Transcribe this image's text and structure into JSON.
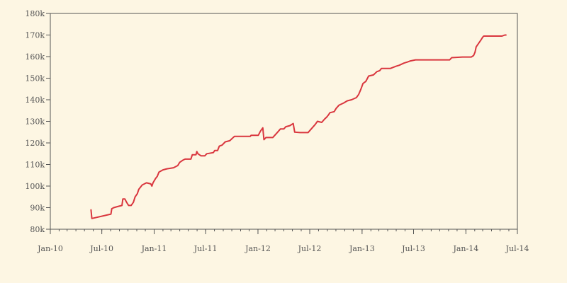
{
  "chart_data": {
    "type": "line",
    "title": "",
    "xlabel": "",
    "ylabel": "",
    "grid": false,
    "colors": {
      "background": "#fdf6e3",
      "plot_background": "#fdf6e3",
      "axis": "#555555",
      "line": "#d9363e"
    },
    "xlim": [
      "2010-01-01",
      "2014-07-01"
    ],
    "ylim": [
      80000,
      180000
    ],
    "x_ticks": [
      {
        "date": "2010-01-01",
        "label": "Jan-10"
      },
      {
        "date": "2010-07-01",
        "label": "Jul-10"
      },
      {
        "date": "2011-01-01",
        "label": "Jan-11"
      },
      {
        "date": "2011-07-01",
        "label": "Jul-11"
      },
      {
        "date": "2012-01-01",
        "label": "Jan-12"
      },
      {
        "date": "2012-07-01",
        "label": "Jul-12"
      },
      {
        "date": "2013-01-01",
        "label": "Jan-13"
      },
      {
        "date": "2013-07-01",
        "label": "Jul-13"
      },
      {
        "date": "2014-01-01",
        "label": "Jan-14"
      },
      {
        "date": "2014-07-01",
        "label": "Jul-14"
      }
    ],
    "y_ticks": [
      {
        "value": 80000,
        "label": "80k"
      },
      {
        "value": 90000,
        "label": "90k"
      },
      {
        "value": 100000,
        "label": "100k"
      },
      {
        "value": 110000,
        "label": "110k"
      },
      {
        "value": 120000,
        "label": "120k"
      },
      {
        "value": 130000,
        "label": "130k"
      },
      {
        "value": 140000,
        "label": "140k"
      },
      {
        "value": 150000,
        "label": "150k"
      },
      {
        "value": 160000,
        "label": "160k"
      },
      {
        "value": 170000,
        "label": "170k"
      },
      {
        "value": 180000,
        "label": "180k"
      }
    ],
    "series": [
      {
        "points": [
          [
            "2010-05-24",
            89000
          ],
          [
            "2010-05-27",
            85000
          ],
          [
            "2010-08-02",
            87000
          ],
          [
            "2010-08-05",
            89500
          ],
          [
            "2010-08-12",
            90000
          ],
          [
            "2010-08-25",
            90500
          ],
          [
            "2010-09-10",
            91000
          ],
          [
            "2010-09-13",
            94000
          ],
          [
            "2010-09-20",
            94000
          ],
          [
            "2010-09-26",
            92500
          ],
          [
            "2010-10-03",
            91000
          ],
          [
            "2010-10-12",
            91000
          ],
          [
            "2010-10-20",
            92500
          ],
          [
            "2010-10-26",
            95000
          ],
          [
            "2010-11-03",
            96500
          ],
          [
            "2010-11-08",
            98500
          ],
          [
            "2010-11-20",
            100500
          ],
          [
            "2010-12-05",
            101500
          ],
          [
            "2010-12-20",
            101000
          ],
          [
            "2010-12-24",
            100000
          ],
          [
            "2010-12-28",
            101500
          ],
          [
            "2011-01-06",
            103500
          ],
          [
            "2011-01-12",
            104500
          ],
          [
            "2011-01-18",
            106500
          ],
          [
            "2011-02-01",
            107500
          ],
          [
            "2011-02-15",
            108000
          ],
          [
            "2011-03-10",
            108500
          ],
          [
            "2011-03-25",
            109500
          ],
          [
            "2011-04-01",
            111000
          ],
          [
            "2011-04-12",
            112000
          ],
          [
            "2011-04-20",
            112500
          ],
          [
            "2011-05-10",
            112500
          ],
          [
            "2011-05-15",
            114500
          ],
          [
            "2011-05-28",
            114500
          ],
          [
            "2011-05-31",
            116000
          ],
          [
            "2011-06-04",
            115000
          ],
          [
            "2011-06-15",
            114000
          ],
          [
            "2011-06-28",
            114000
          ],
          [
            "2011-07-05",
            115000
          ],
          [
            "2011-07-28",
            115500
          ],
          [
            "2011-08-02",
            116500
          ],
          [
            "2011-08-12",
            116500
          ],
          [
            "2011-08-18",
            118500
          ],
          [
            "2011-08-28",
            119000
          ],
          [
            "2011-09-08",
            120500
          ],
          [
            "2011-09-24",
            121000
          ],
          [
            "2011-10-10",
            123000
          ],
          [
            "2011-12-05",
            123000
          ],
          [
            "2011-12-08",
            123500
          ],
          [
            "2012-01-02",
            123500
          ],
          [
            "2012-01-10",
            125500
          ],
          [
            "2012-01-18",
            127000
          ],
          [
            "2012-01-22",
            121500
          ],
          [
            "2012-01-29",
            122500
          ],
          [
            "2012-02-22",
            122500
          ],
          [
            "2012-03-10",
            125000
          ],
          [
            "2012-03-20",
            126500
          ],
          [
            "2012-04-01",
            126500
          ],
          [
            "2012-04-08",
            127500
          ],
          [
            "2012-04-22",
            128000
          ],
          [
            "2012-05-04",
            129000
          ],
          [
            "2012-05-09",
            125000
          ],
          [
            "2012-05-28",
            124800
          ],
          [
            "2012-06-25",
            124800
          ],
          [
            "2012-07-20",
            128500
          ],
          [
            "2012-07-28",
            130000
          ],
          [
            "2012-08-12",
            129500
          ],
          [
            "2012-08-22",
            131000
          ],
          [
            "2012-08-30",
            132000
          ],
          [
            "2012-09-05",
            133000
          ],
          [
            "2012-09-10",
            134000
          ],
          [
            "2012-09-25",
            134500
          ],
          [
            "2012-10-02",
            136000
          ],
          [
            "2012-10-12",
            137500
          ],
          [
            "2012-10-28",
            138500
          ],
          [
            "2012-11-10",
            139500
          ],
          [
            "2012-11-25",
            140000
          ],
          [
            "2012-12-12",
            141000
          ],
          [
            "2012-12-20",
            142500
          ],
          [
            "2012-12-28",
            145000
          ],
          [
            "2013-01-04",
            147500
          ],
          [
            "2013-01-14",
            148500
          ],
          [
            "2013-01-24",
            151000
          ],
          [
            "2013-02-10",
            151500
          ],
          [
            "2013-02-22",
            153000
          ],
          [
            "2013-03-04",
            153500
          ],
          [
            "2013-03-10",
            154500
          ],
          [
            "2013-04-10",
            154500
          ],
          [
            "2013-04-30",
            155500
          ],
          [
            "2013-05-12",
            156000
          ],
          [
            "2013-05-28",
            157000
          ],
          [
            "2013-06-10",
            157500
          ],
          [
            "2013-06-20",
            158000
          ],
          [
            "2013-07-08",
            158500
          ],
          [
            "2013-11-05",
            158500
          ],
          [
            "2013-11-12",
            159500
          ],
          [
            "2013-12-20",
            159800
          ],
          [
            "2014-01-20",
            159800
          ],
          [
            "2014-01-28",
            160500
          ],
          [
            "2014-02-02",
            162000
          ],
          [
            "2014-02-06",
            164500
          ],
          [
            "2014-02-14",
            166000
          ],
          [
            "2014-02-22",
            167500
          ],
          [
            "2014-03-01",
            169000
          ],
          [
            "2014-03-05",
            169500
          ],
          [
            "2014-05-08",
            169500
          ],
          [
            "2014-05-18",
            170000
          ],
          [
            "2014-05-22",
            170000
          ]
        ]
      }
    ]
  }
}
